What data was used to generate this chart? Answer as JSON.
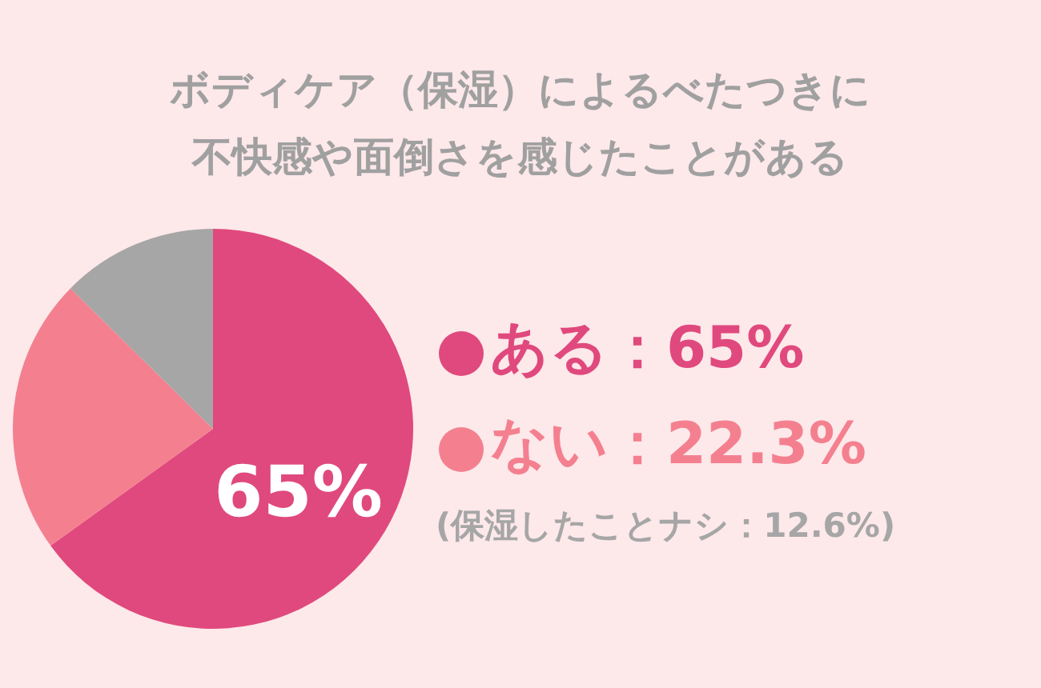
{
  "chart_data": {
    "type": "pie",
    "title": "ボディケア（保湿）によるべたつきに不快感や面倒さを感じたことがある",
    "categories": [
      null,
      null,
      null
    ],
    "values": [
      65,
      22.3,
      12.6
    ],
    "colors": [
      "#e0497d",
      "#f4808f",
      "#a6a6a6"
    ],
    "value_labels": [
      "65%",
      null,
      null
    ],
    "annotations": [
      "ある：65%",
      "ない：22.3%",
      "(保湿したことナシ：12.6%)"
    ]
  }
}
